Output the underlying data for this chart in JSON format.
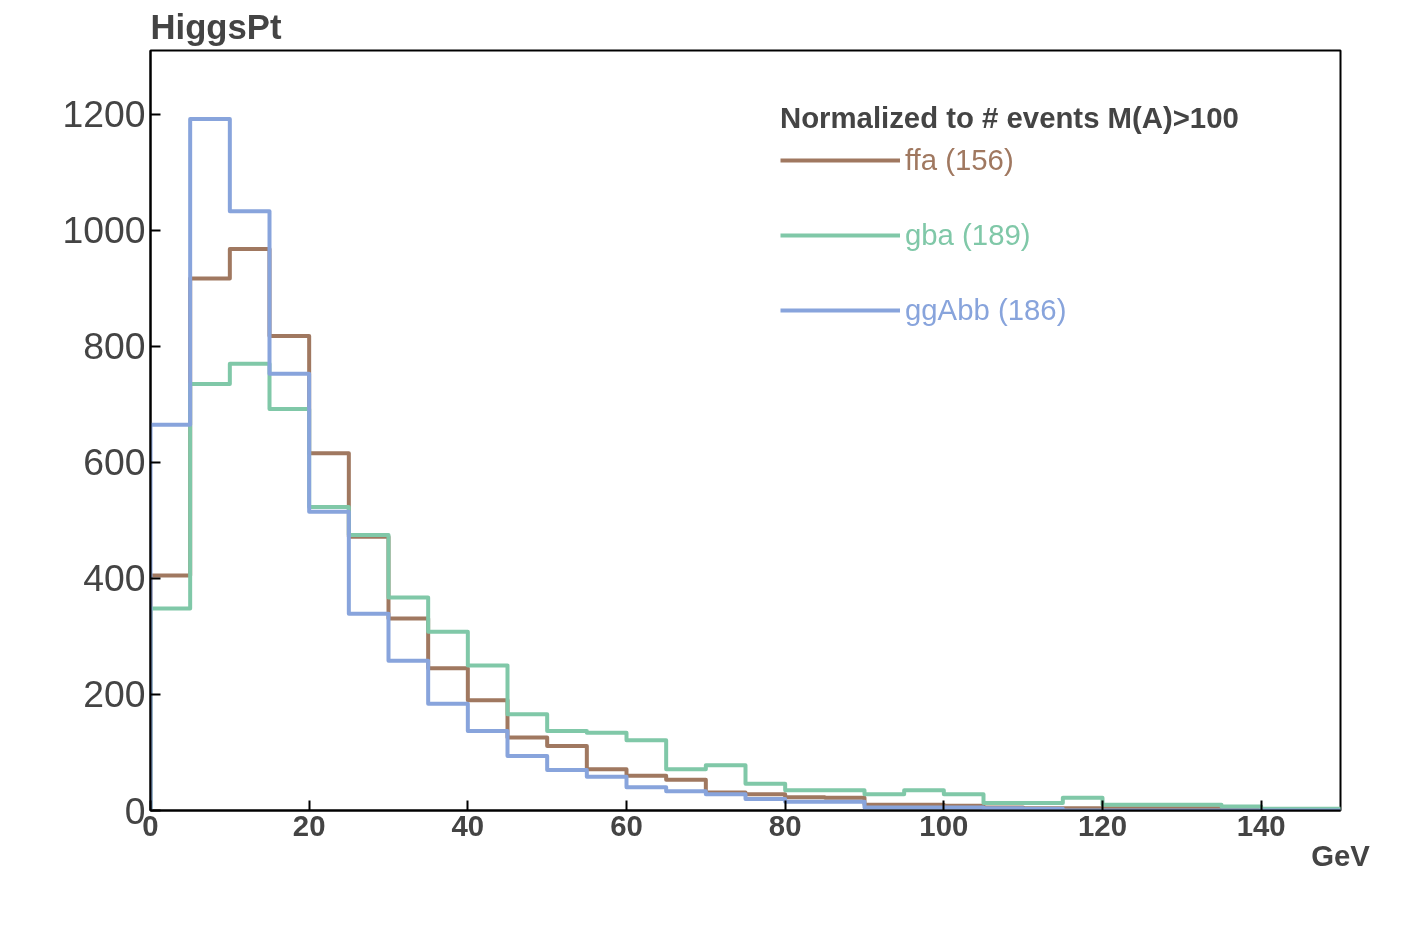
{
  "chart_data": {
    "type": "histogram",
    "title": "HiggsPt",
    "xlabel": "GeV",
    "legend_title": "Normalized to # events M(A)>100",
    "bins": [
      0,
      5,
      10,
      15,
      20,
      25,
      30,
      35,
      40,
      45,
      50,
      55,
      60,
      65,
      70,
      75,
      80,
      85,
      90,
      95,
      100,
      105,
      110,
      115,
      120,
      125,
      130,
      135,
      140,
      145,
      150
    ],
    "series": [
      {
        "name": "ffa (156)",
        "color": "#a07860",
        "values": [
          405,
          917,
          968,
          818,
          616,
          472,
          331,
          245,
          190,
          126,
          111,
          71,
          60,
          53,
          31,
          28,
          23,
          22,
          10,
          10,
          8,
          5,
          4,
          4,
          4,
          4,
          4,
          3,
          2,
          0
        ]
      },
      {
        "name": "gba (189)",
        "color": "#80c8a8",
        "values": [
          348,
          735,
          770,
          692,
          523,
          475,
          367,
          308,
          250,
          166,
          137,
          134,
          121,
          71,
          78,
          46,
          35,
          35,
          28,
          35,
          28,
          13,
          13,
          22,
          10,
          10,
          10,
          7,
          3,
          3
        ]
      },
      {
        "name": "ggAbb (186)",
        "color": "#88a4dc",
        "values": [
          665,
          1192,
          1033,
          753,
          515,
          339,
          258,
          184,
          137,
          94,
          70,
          58,
          40,
          33,
          28,
          20,
          15,
          15,
          5,
          5,
          5,
          4,
          3,
          0,
          0,
          0,
          0,
          0,
          0,
          0
        ]
      }
    ],
    "xlim": [
      0,
      150
    ],
    "ylim": [
      0,
      1310
    ],
    "xticks": [
      0,
      20,
      40,
      60,
      80,
      100,
      120,
      140
    ],
    "yticks": [
      0,
      200,
      400,
      600,
      800,
      1000,
      1200
    ],
    "grid": false,
    "legend": "top right"
  }
}
